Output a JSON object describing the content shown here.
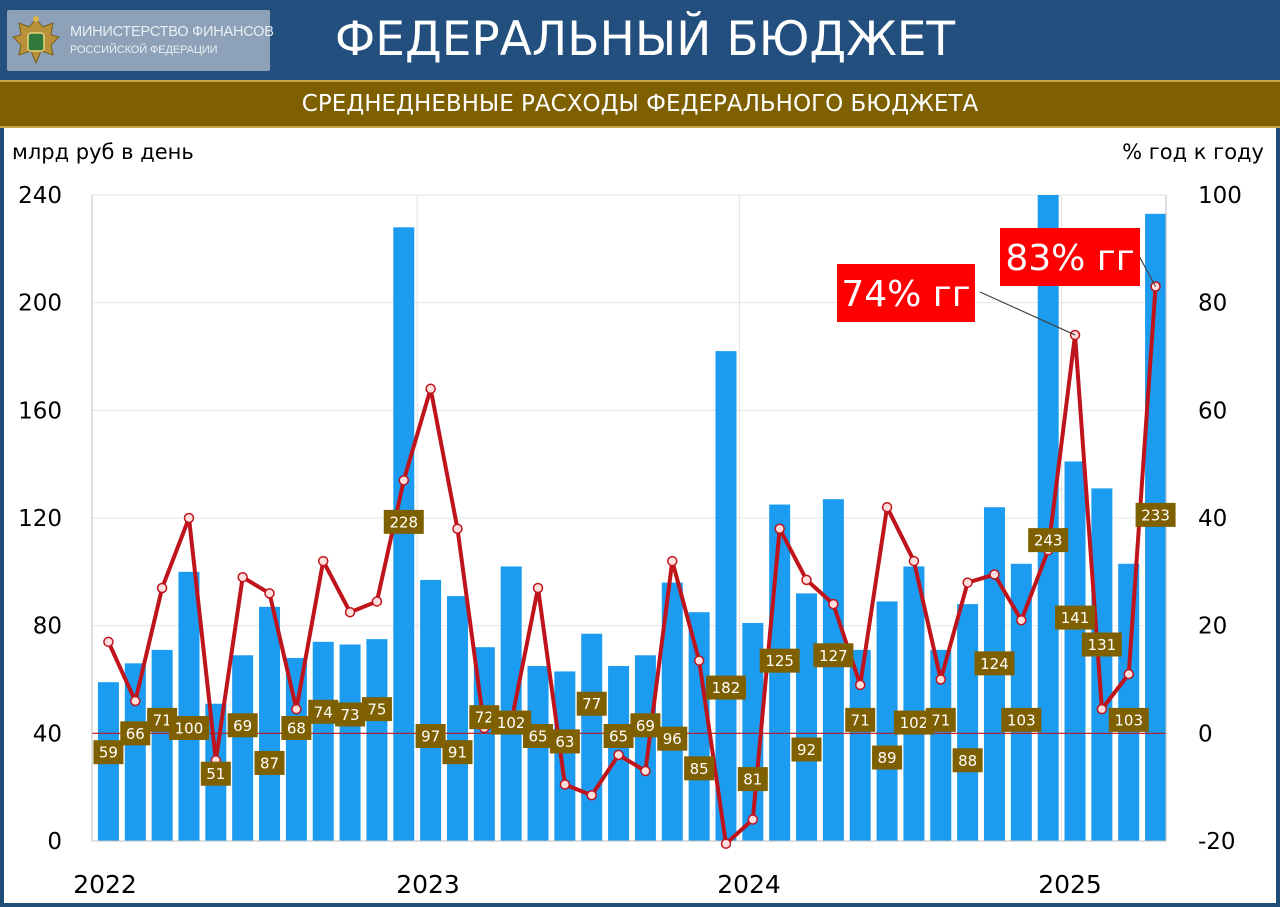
{
  "header": {
    "logo_line1": "МИНИСТЕРСТВО ФИНАНСОВ",
    "logo_line2": "РОССИЙСКОЙ ФЕДЕРАЦИИ",
    "title": "ФЕДЕРАЛЬНЫЙ БЮДЖЕТ"
  },
  "subtitle": "СРЕДНЕДНЕВНЫЕ РАСХОДЫ ФЕДЕРАЛЬНОГО БЮДЖЕТА",
  "colors": {
    "bar": "#1b9cf0",
    "line": "#c0141c",
    "marker_fill": "#ffdede",
    "badge": "#7f6000",
    "callout": "#ff0000",
    "header": "#234f7e"
  },
  "chart_data": {
    "type": "bar",
    "title": "СРЕДНЕДНЕВНЫЕ РАСХОДЫ ФЕДЕРАЛЬНОГО БЮДЖЕТА",
    "ylabel": "млрд руб в день",
    "y2label": "% год к году",
    "ylim": [
      0,
      240
    ],
    "y2lim": [
      -20,
      100
    ],
    "yticks": [
      "0",
      "40",
      "80",
      "120",
      "160",
      "200",
      "240"
    ],
    "y2ticks": [
      "-20",
      "0",
      "20",
      "40",
      "60",
      "80",
      "100"
    ],
    "x_year_labels": [
      "2022",
      "2023",
      "2024",
      "2025"
    ],
    "grid": true,
    "series": [
      {
        "name": "млрд руб в день",
        "type": "bar",
        "axis": "left",
        "values": [
          59,
          66,
          71,
          100,
          51,
          69,
          87,
          68,
          74,
          73,
          75,
          228,
          97,
          91,
          72,
          102,
          65,
          63,
          77,
          65,
          69,
          96,
          85,
          182,
          81,
          125,
          92,
          127,
          71,
          89,
          102,
          71,
          88,
          124,
          103,
          243,
          141,
          131,
          103,
          233
        ],
        "labels": [
          "59",
          "66",
          "71",
          "100",
          "51",
          "69",
          "87",
          "68",
          "74",
          "73",
          "75",
          "228",
          "97",
          "91",
          "72",
          "102",
          "65",
          "63",
          "77",
          "65",
          "69",
          "96",
          "85",
          "182",
          "81",
          "125",
          "92",
          "127",
          "71",
          "89",
          "102",
          "71",
          "88",
          "124",
          "103",
          "243",
          "141",
          "131",
          "103",
          "233"
        ]
      },
      {
        "name": "% год к году",
        "type": "line",
        "axis": "right",
        "values": [
          17,
          6,
          27,
          40,
          -5,
          29,
          26,
          4.5,
          32,
          22.5,
          24.5,
          47,
          64,
          38,
          1,
          2,
          27,
          -9.5,
          -11.5,
          -4,
          -7,
          32,
          13.5,
          -20.5,
          -16,
          38,
          28.5,
          24,
          9,
          42,
          32,
          10,
          28,
          29.5,
          21,
          34,
          74,
          4.5,
          11,
          83
        ]
      }
    ],
    "annotations": [
      {
        "text": "74% гг",
        "point_index": 36
      },
      {
        "text": "83% гг",
        "point_index": 39
      }
    ]
  }
}
